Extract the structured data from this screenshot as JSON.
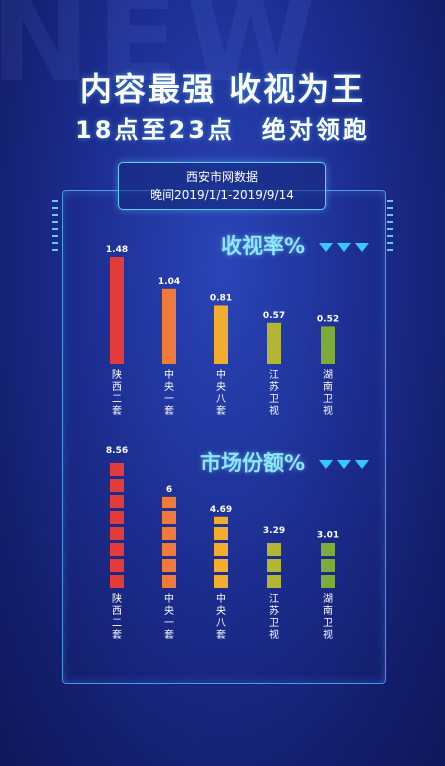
{
  "headline": {
    "line1": "内容最强 收视为王",
    "line2": "18点至23点　绝对领跑"
  },
  "source": {
    "line1": "西安市网数据",
    "line2": "晚间2019/1/1-2019/9/14"
  },
  "colors": {
    "bars": [
      "#e33a3a",
      "#ef7a3a",
      "#f2ac2e",
      "#b3b534",
      "#7faa3e"
    ]
  },
  "chart_data": [
    {
      "type": "bar",
      "title": "收视率%",
      "categories": [
        "陕西二套",
        "中央一套",
        "中央八套",
        "江苏卫视",
        "湖南卫视"
      ],
      "values": [
        1.48,
        1.04,
        0.81,
        0.57,
        0.52
      ],
      "value_labels": [
        "1.48",
        "1.04",
        "0.81",
        "0.57",
        "0.52"
      ]
    },
    {
      "type": "bar",
      "title": "市场份额%",
      "categories": [
        "陕西二套",
        "中央一套",
        "中央八套",
        "江苏卫视",
        "湖南卫视"
      ],
      "values": [
        8.56,
        6,
        4.69,
        3.29,
        3.01
      ],
      "value_labels": [
        "8.56",
        "6",
        "4.69",
        "3.29",
        "3.01"
      ]
    }
  ]
}
